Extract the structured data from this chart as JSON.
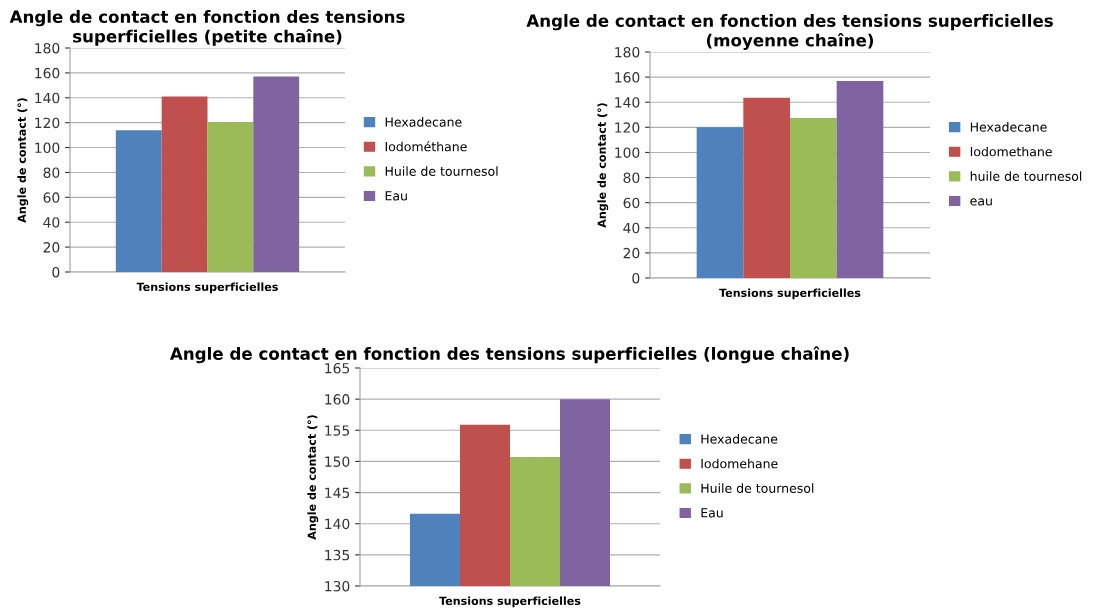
{
  "chart_data": [
    {
      "type": "bar",
      "title": "Angle de contact en fonction des tensions superficielles (petite chaîne)",
      "xlabel": "Tensions superficielles",
      "ylabel": "Angle de contact (°)",
      "categories": [
        null
      ],
      "ylim": [
        0,
        180
      ],
      "yticks": [
        0,
        20,
        40,
        60,
        80,
        100,
        120,
        140,
        160,
        180
      ],
      "grid": "y",
      "legend": "right",
      "series": [
        {
          "name": "Hexadecane",
          "color": "#4f81bd",
          "values": [
            114
          ]
        },
        {
          "name": "Iodométhane",
          "color": "#c0504d",
          "values": [
            141
          ]
        },
        {
          "name": "Huile de tournesol",
          "color": "#9bbb59",
          "values": [
            120.5
          ]
        },
        {
          "name": "Eau",
          "color": "#8064a2",
          "values": [
            157
          ]
        }
      ]
    },
    {
      "type": "bar",
      "title": "Angle de contact en fonction des tensions superficielles (moyenne chaîne)",
      "xlabel": "Tensions superficielles",
      "ylabel": "Angle de contact (°)",
      "categories": [
        null
      ],
      "ylim": [
        0,
        180
      ],
      "yticks": [
        0,
        20,
        40,
        60,
        80,
        100,
        120,
        140,
        160,
        180
      ],
      "grid": "y",
      "legend": "right",
      "series": [
        {
          "name": "Hexadecane",
          "color": "#4f81bd",
          "values": [
            120
          ]
        },
        {
          "name": "Iodomethane",
          "color": "#c0504d",
          "values": [
            143.5
          ]
        },
        {
          "name": "huile de tournesol",
          "color": "#9bbb59",
          "values": [
            127.5
          ]
        },
        {
          "name": "eau",
          "color": "#8064a2",
          "values": [
            157
          ]
        }
      ]
    },
    {
      "type": "bar",
      "title": "Angle de contact en fonction des tensions superficielles (longue chaîne)",
      "xlabel": "Tensions superficielles",
      "ylabel": "Angle de contact (°)",
      "categories": [
        null
      ],
      "ylim": [
        130,
        165
      ],
      "yticks": [
        130,
        135,
        140,
        145,
        150,
        155,
        160,
        165
      ],
      "grid": "y",
      "legend": "right",
      "series": [
        {
          "name": "Hexadecane",
          "color": "#4f81bd",
          "values": [
            141.6
          ]
        },
        {
          "name": "Iodomehane",
          "color": "#c0504d",
          "values": [
            155.9
          ]
        },
        {
          "name": "Huile de tournesol",
          "color": "#9bbb59",
          "values": [
            150.7
          ]
        },
        {
          "name": "Eau",
          "color": "#8064a2",
          "values": [
            160
          ]
        }
      ]
    }
  ]
}
